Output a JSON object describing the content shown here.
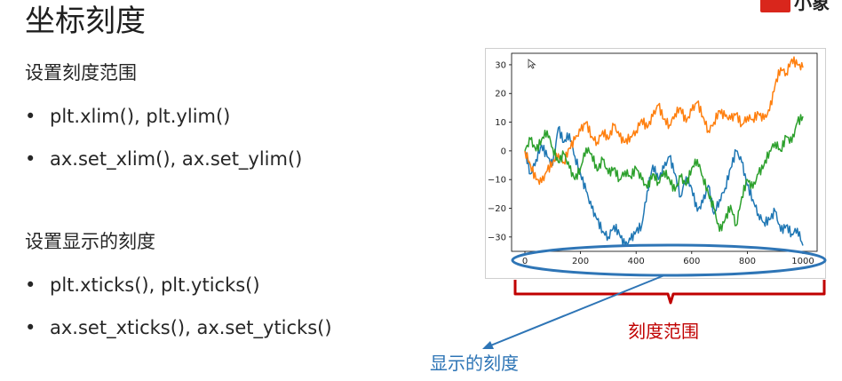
{
  "page": {
    "title": "坐标刻度",
    "logo": {
      "icon": "brand-logo-icon",
      "text": "小象"
    }
  },
  "sections": [
    {
      "heading": "设置刻度范围",
      "items": [
        "plt.xlim(), plt.ylim()",
        "ax.set_xlim(), ax.set_ylim()"
      ]
    },
    {
      "heading": "设置显示的刻度",
      "items": [
        "plt.xticks(), plt.yticks()",
        "ax.set_xticks(), ax.set_yticks()"
      ]
    }
  ],
  "bullet_glyph": "•",
  "annotations": {
    "range_label": "刻度范围",
    "ticks_label": "显示的刻度",
    "range_color": "#c00000",
    "ticks_color": "#2e75b6"
  },
  "chart_data": {
    "type": "line",
    "title": "",
    "xlabel": "",
    "ylabel": "",
    "xlim": [
      0,
      1000
    ],
    "ylim": [
      -35,
      34
    ],
    "x_ticks": [
      0,
      200,
      400,
      600,
      800,
      1000
    ],
    "y_ticks": [
      30,
      20,
      10,
      0,
      -10,
      -20,
      -30
    ],
    "x_tick_labels": [
      "0",
      "200",
      "400",
      "600",
      "800",
      "1000"
    ],
    "y_tick_labels": [
      "30",
      "20",
      "10",
      "0",
      "−10",
      "−20",
      "−30"
    ],
    "grid": false,
    "series": [
      {
        "color": "#1f77b4",
        "x": [
          0,
          20,
          40,
          60,
          80,
          100,
          120,
          140,
          160,
          180,
          200,
          220,
          240,
          260,
          280,
          300,
          320,
          340,
          360,
          380,
          400,
          420,
          440,
          460,
          480,
          500,
          520,
          540,
          560,
          580,
          600,
          620,
          640,
          660,
          680,
          700,
          720,
          740,
          760,
          780,
          800,
          820,
          840,
          860,
          880,
          900,
          920,
          940,
          960,
          980,
          1000
        ],
        "y": [
          0,
          -8,
          -3,
          2,
          -2,
          -5,
          8,
          3,
          6,
          -2,
          -8,
          -14,
          -20,
          -24,
          -28,
          -30,
          -26,
          -29,
          -33,
          -31,
          -28,
          -26,
          -14,
          -5,
          -10,
          -6,
          -2,
          -8,
          -16,
          -9,
          -13,
          -21,
          -18,
          -12,
          -22,
          -17,
          -13,
          -6,
          0,
          -4,
          -12,
          -17,
          -22,
          -25,
          -24,
          -21,
          -28,
          -26,
          -29,
          -27,
          -33
        ]
      },
      {
        "color": "#ff7f0e",
        "x": [
          0,
          20,
          40,
          60,
          80,
          100,
          120,
          140,
          160,
          180,
          200,
          220,
          240,
          260,
          280,
          300,
          320,
          340,
          360,
          380,
          400,
          420,
          440,
          460,
          480,
          500,
          520,
          540,
          560,
          580,
          600,
          620,
          640,
          660,
          680,
          700,
          720,
          740,
          760,
          780,
          800,
          820,
          840,
          860,
          880,
          900,
          920,
          940,
          960,
          980,
          1000
        ],
        "y": [
          0,
          -5,
          -10,
          -11,
          -7,
          -4,
          -1,
          -4,
          1,
          4,
          7,
          10,
          5,
          3,
          7,
          4,
          9,
          5,
          3,
          5,
          7,
          11,
          8,
          12,
          16,
          11,
          9,
          13,
          15,
          10,
          14,
          17,
          12,
          7,
          10,
          14,
          12,
          11,
          13,
          9,
          12,
          11,
          13,
          11,
          14,
          23,
          29,
          27,
          32,
          30,
          29
        ]
      },
      {
        "color": "#2ca02c",
        "x": [
          0,
          20,
          40,
          60,
          80,
          100,
          120,
          140,
          160,
          180,
          200,
          220,
          240,
          260,
          280,
          300,
          320,
          340,
          360,
          380,
          400,
          420,
          440,
          460,
          480,
          500,
          520,
          540,
          560,
          580,
          600,
          620,
          640,
          660,
          680,
          700,
          720,
          740,
          760,
          780,
          800,
          820,
          840,
          860,
          880,
          900,
          920,
          940,
          960,
          980,
          1000
        ],
        "y": [
          0,
          4,
          0,
          4,
          7,
          1,
          -4,
          -1,
          -6,
          -10,
          -6,
          1,
          -1,
          -7,
          -3,
          -8,
          -6,
          -10,
          -7,
          -9,
          -6,
          -10,
          -13,
          -8,
          -11,
          -7,
          -10,
          -14,
          -9,
          -12,
          -6,
          -3,
          -9,
          -15,
          -20,
          -28,
          -24,
          -19,
          -26,
          -16,
          -10,
          -13,
          -8,
          -5,
          0,
          3,
          0,
          5,
          3,
          10,
          12
        ]
      }
    ]
  }
}
